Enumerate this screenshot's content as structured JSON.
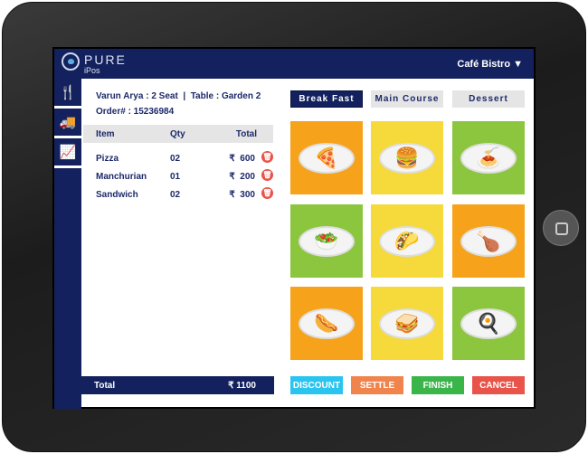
{
  "header": {
    "brand": "PURE",
    "sub": "iPos",
    "venue": "Café Bistro ▼"
  },
  "sidebar": [
    {
      "icon": "fork-knife-icon",
      "glyph": "🍴"
    },
    {
      "icon": "truck-icon",
      "glyph": "🚚"
    },
    {
      "icon": "chart-icon",
      "glyph": "📈"
    }
  ],
  "order": {
    "info": "Varun Arya : 2 Seat  |  Table : Garden 2",
    "number": "Order# : 15236984"
  },
  "table": {
    "headers": [
      "Item",
      "Qty",
      "Total"
    ],
    "rows": [
      {
        "item": "Pizza",
        "qty": "02",
        "total": "₹  600"
      },
      {
        "item": "Manchurian",
        "qty": "01",
        "total": "₹  200"
      },
      {
        "item": "Sandwich",
        "qty": "02",
        "total": "₹  300"
      }
    ]
  },
  "total": {
    "label": "Total",
    "value": "₹ 1100"
  },
  "tabs": [
    "Break Fast",
    "Main Course",
    "Dessert"
  ],
  "tiles": [
    {
      "name": "pizza",
      "bg": "#f7a21b",
      "glyph": "🍕"
    },
    {
      "name": "burger-fries",
      "bg": "#f6d93b",
      "glyph": "🍔"
    },
    {
      "name": "spaghetti",
      "bg": "#8cc63f",
      "glyph": "🍝"
    },
    {
      "name": "nachos-dip",
      "bg": "#8cc63f",
      "glyph": "🥗"
    },
    {
      "name": "taco",
      "bg": "#f6d93b",
      "glyph": "🌮"
    },
    {
      "name": "roast-chicken",
      "bg": "#f7a21b",
      "glyph": "🍗"
    },
    {
      "name": "hotdog",
      "bg": "#f7a21b",
      "glyph": "🌭"
    },
    {
      "name": "sandwich",
      "bg": "#f6d93b",
      "glyph": "🥪"
    },
    {
      "name": "eggs-fries",
      "bg": "#8cc63f",
      "glyph": "🍳"
    }
  ],
  "actions": [
    {
      "label": "DISCOUNT",
      "color": "#29c4ef"
    },
    {
      "label": "SETTLE",
      "color": "#f0844c"
    },
    {
      "label": "FINISH",
      "color": "#3ab54a"
    },
    {
      "label": "CANCEL",
      "color": "#e8534a"
    }
  ]
}
